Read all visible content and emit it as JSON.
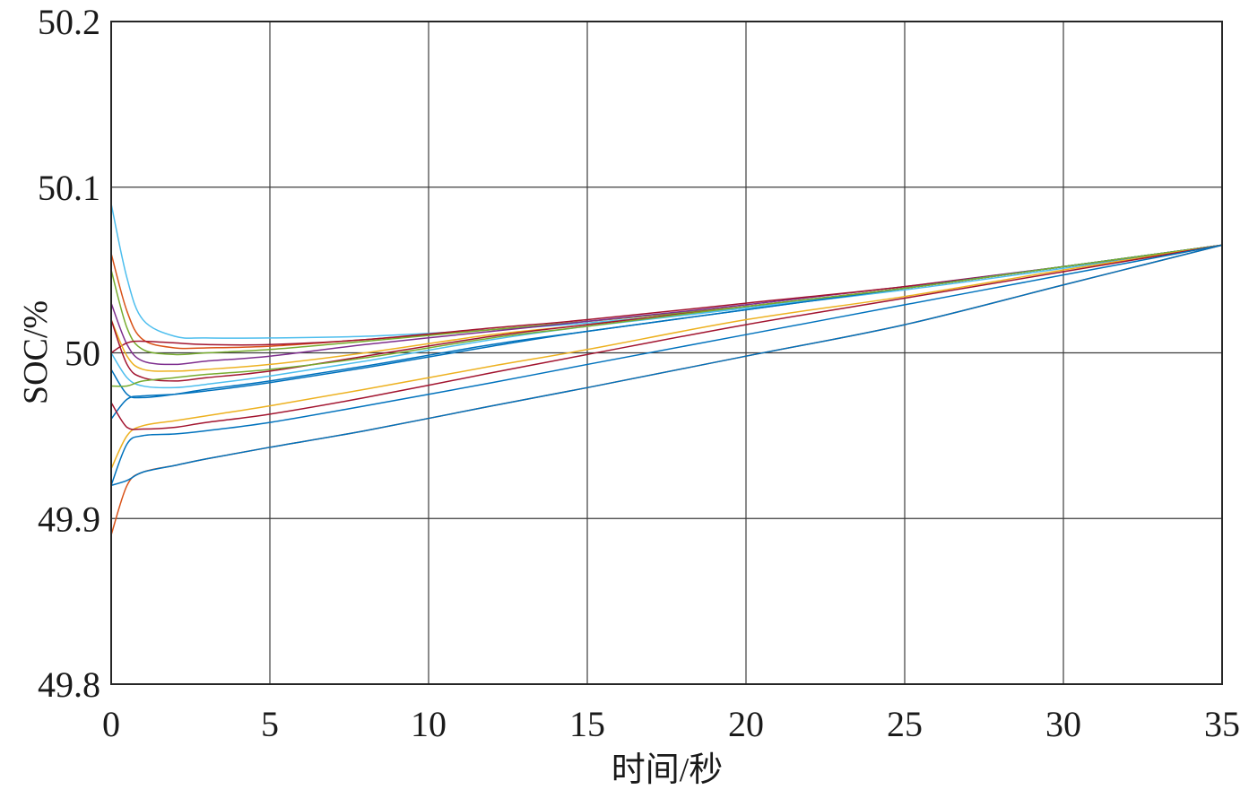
{
  "chart_data": {
    "type": "line",
    "title": "",
    "xlabel": "时间/秒",
    "ylabel": "SOC/%",
    "xlim": [
      0,
      35
    ],
    "ylim": [
      49.8,
      50.2
    ],
    "xticks": [
      0,
      5,
      10,
      15,
      20,
      25,
      30,
      35
    ],
    "xtick_labels": [
      "0",
      "5",
      "10",
      "15",
      "20",
      "25",
      "30",
      "35"
    ],
    "yticks": [
      49.8,
      49.9,
      50,
      50.1,
      50.2
    ],
    "ytick_labels": [
      "49.8",
      "49.9",
      "50",
      "50.1",
      "50.2"
    ],
    "grid": true,
    "legend": "none",
    "series": [
      {
        "color": "#4DBEEE",
        "x": [
          0,
          0.5,
          1,
          2,
          3,
          5,
          8,
          12,
          15,
          20,
          25,
          30,
          35
        ],
        "values": [
          50.09,
          50.045,
          50.02,
          50.01,
          50.009,
          50.009,
          50.01,
          50.014,
          50.018,
          50.027,
          50.038,
          50.051,
          50.065
        ]
      },
      {
        "color": "#D95319",
        "x": [
          0,
          0.5,
          1,
          2,
          3,
          5,
          8,
          12,
          15,
          20,
          25,
          30,
          35
        ],
        "values": [
          50.06,
          50.025,
          50.008,
          50.003,
          50.003,
          50.004,
          50.008,
          50.014,
          50.019,
          50.028,
          50.039,
          50.052,
          50.065
        ]
      },
      {
        "color": "#77AC30",
        "x": [
          0,
          0.5,
          1,
          2,
          3,
          5,
          8,
          12,
          15,
          20,
          25,
          30,
          35
        ],
        "values": [
          50.05,
          50.015,
          50.002,
          49.999,
          50.0,
          50.002,
          50.007,
          50.014,
          50.019,
          50.028,
          50.039,
          50.052,
          50.065
        ]
      },
      {
        "color": "#7E2F8E",
        "x": [
          0,
          0.5,
          1,
          2,
          3,
          5,
          8,
          12,
          15,
          20,
          25,
          30,
          35
        ],
        "values": [
          50.03,
          50.005,
          49.995,
          49.993,
          49.995,
          49.998,
          50.005,
          50.013,
          50.019,
          50.029,
          50.04,
          50.052,
          50.065
        ]
      },
      {
        "color": "#A2142F",
        "x": [
          0,
          0.5,
          1,
          2,
          3,
          5,
          8,
          12,
          15,
          20,
          25,
          30,
          35
        ],
        "values": [
          50.0,
          50.006,
          50.007,
          50.006,
          50.005,
          50.005,
          50.008,
          50.015,
          50.02,
          50.03,
          50.04,
          50.052,
          50.065
        ]
      },
      {
        "color": "#0072BD",
        "x": [
          0,
          0.5,
          1,
          2,
          3,
          5,
          8,
          12,
          15,
          20,
          25,
          30,
          35
        ],
        "values": [
          49.99,
          49.975,
          49.973,
          49.975,
          49.978,
          49.983,
          49.992,
          50.005,
          50.013,
          50.026,
          50.039,
          50.052,
          50.065
        ]
      },
      {
        "color": "#EDB120",
        "x": [
          0,
          0.5,
          1,
          2,
          3,
          5,
          8,
          12,
          15,
          20,
          25,
          30,
          35
        ],
        "values": [
          50.02,
          49.998,
          49.99,
          49.989,
          49.99,
          49.993,
          50.0,
          50.011,
          50.017,
          50.028,
          50.039,
          50.052,
          50.065
        ]
      },
      {
        "color": "#A2142F",
        "x": [
          0,
          0.5,
          1,
          2,
          3,
          5,
          8,
          12,
          15,
          20,
          25,
          30,
          35
        ],
        "values": [
          50.02,
          49.993,
          49.985,
          49.983,
          49.985,
          49.989,
          49.998,
          50.01,
          50.017,
          50.028,
          50.039,
          50.052,
          50.065
        ]
      },
      {
        "color": "#4DBEEE",
        "x": [
          0,
          0.5,
          1,
          2,
          3,
          5,
          8,
          12,
          15,
          20,
          25,
          30,
          35
        ],
        "values": [
          50.0,
          49.985,
          49.98,
          49.979,
          49.981,
          49.986,
          49.995,
          50.008,
          50.016,
          50.027,
          50.039,
          50.052,
          50.065
        ]
      },
      {
        "color": "#0072BD",
        "x": [
          0,
          0.5,
          1,
          2,
          3,
          5,
          8,
          12,
          15,
          20,
          25,
          30,
          35
        ],
        "values": [
          49.96,
          49.972,
          49.974,
          49.975,
          49.977,
          49.982,
          49.991,
          50.004,
          50.013,
          50.026,
          50.039,
          50.052,
          50.065
        ]
      },
      {
        "color": "#77AC30",
        "x": [
          0,
          0.5,
          1,
          2,
          3,
          5,
          8,
          12,
          15,
          20,
          25,
          30,
          35
        ],
        "values": [
          49.98,
          49.98,
          49.983,
          49.985,
          49.987,
          49.99,
          49.997,
          50.009,
          50.016,
          50.028,
          50.039,
          50.052,
          50.065
        ]
      },
      {
        "color": "#EDB120",
        "x": [
          0,
          0.5,
          1,
          2,
          3,
          5,
          8,
          12,
          15,
          20,
          25,
          30,
          35
        ],
        "values": [
          49.93,
          49.95,
          49.956,
          49.959,
          49.962,
          49.968,
          49.978,
          49.992,
          50.002,
          50.02,
          50.034,
          50.05,
          50.065
        ]
      },
      {
        "color": "#A2142F",
        "x": [
          0,
          0.5,
          1,
          2,
          3,
          5,
          8,
          12,
          15,
          20,
          25,
          30,
          35
        ],
        "values": [
          49.97,
          49.955,
          49.954,
          49.955,
          49.958,
          49.963,
          49.973,
          49.988,
          49.999,
          50.017,
          50.033,
          50.049,
          50.065
        ]
      },
      {
        "color": "#0072BD",
        "x": [
          0,
          0.5,
          1,
          2,
          3,
          5,
          8,
          12,
          15,
          20,
          25,
          30,
          35
        ],
        "values": [
          49.92,
          49.945,
          49.95,
          49.951,
          49.953,
          49.958,
          49.968,
          49.982,
          49.993,
          50.011,
          50.029,
          50.047,
          50.065
        ]
      },
      {
        "color": "#D95319",
        "x": [
          0,
          0.5,
          1,
          2,
          3,
          5,
          8,
          12,
          15,
          20,
          25,
          30,
          35
        ],
        "values": [
          49.89,
          49.92,
          49.928,
          49.932,
          49.936,
          49.943,
          49.953,
          49.968,
          49.979,
          49.998,
          50.017,
          50.041,
          50.065
        ]
      },
      {
        "color": "#0072BD",
        "x": [
          0,
          0.5,
          1,
          2,
          3,
          5,
          8,
          12,
          15,
          20,
          25,
          30,
          35
        ],
        "values": [
          49.92,
          49.923,
          49.928,
          49.932,
          49.936,
          49.943,
          49.953,
          49.968,
          49.979,
          49.998,
          50.017,
          50.041,
          50.065
        ]
      }
    ]
  }
}
